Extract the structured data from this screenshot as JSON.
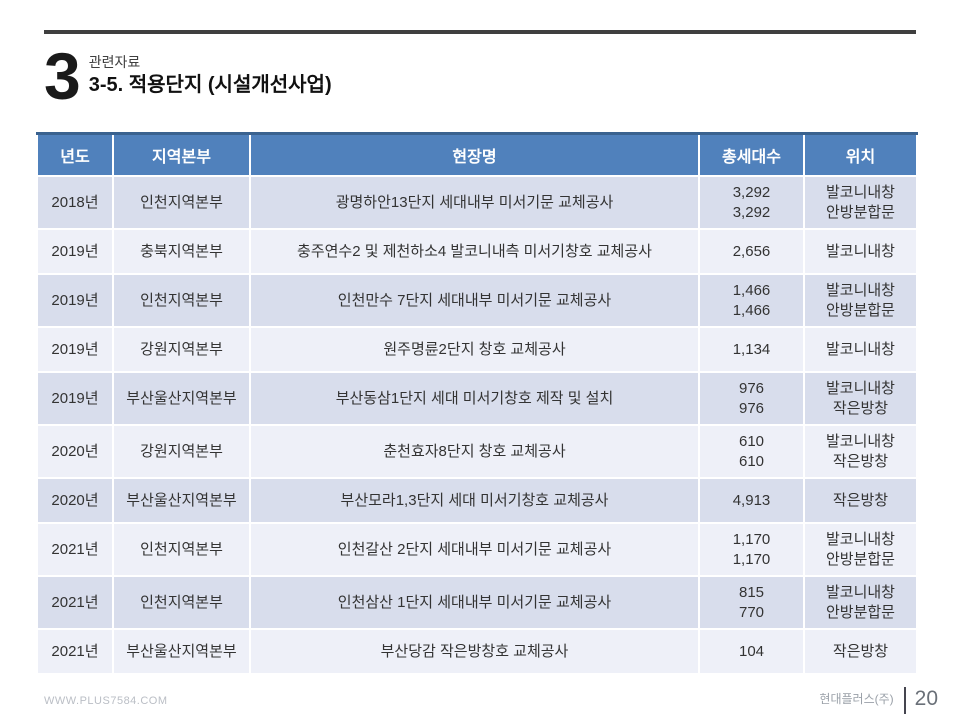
{
  "page": {
    "slide_number": "3",
    "eyebrow": "관련자료",
    "title": "3-5. 적용단지 (시설개선사업)"
  },
  "table": {
    "columns": [
      "년도",
      "지역본부",
      "현장명",
      "총세대수",
      "위치"
    ],
    "column_keys": [
      "year",
      "branch",
      "site",
      "units",
      "location"
    ],
    "rows": [
      {
        "year": "2018년",
        "branch": "인천지역본부",
        "site": "광명하안13단지 세대내부 미서기문 교체공사",
        "units": [
          "3,292",
          "3,292"
        ],
        "location": [
          "발코니내창",
          "안방분합문"
        ]
      },
      {
        "year": "2019년",
        "branch": "충북지역본부",
        "site": "충주연수2 및 제천하소4 발코니내측 미서기창호 교체공사",
        "units": [
          "2,656"
        ],
        "location": [
          "발코니내창"
        ]
      },
      {
        "year": "2019년",
        "branch": "인천지역본부",
        "site": "인천만수 7단지 세대내부 미서기문 교체공사",
        "units": [
          "1,466",
          "1,466"
        ],
        "location": [
          "발코니내창",
          "안방분합문"
        ]
      },
      {
        "year": "2019년",
        "branch": "강원지역본부",
        "site": "원주명륜2단지 창호 교체공사",
        "units": [
          "1,134"
        ],
        "location": [
          "발코니내창"
        ]
      },
      {
        "year": "2019년",
        "branch": "부산울산지역본부",
        "site": "부산동삼1단지 세대 미서기창호 제작 및 설치",
        "units": [
          "976",
          "976"
        ],
        "location": [
          "발코니내창",
          "작은방창"
        ]
      },
      {
        "year": "2020년",
        "branch": "강원지역본부",
        "site": "춘천효자8단지 창호 교체공사",
        "units": [
          "610",
          "610"
        ],
        "location": [
          "발코니내창",
          "작은방창"
        ]
      },
      {
        "year": "2020년",
        "branch": "부산울산지역본부",
        "site": "부산모라1,3단지 세대 미서기창호 교체공사",
        "units": [
          "4,913"
        ],
        "location": [
          "작은방창"
        ]
      },
      {
        "year": "2021년",
        "branch": "인천지역본부",
        "site": "인천갈산 2단지 세대내부 미서기문 교체공사",
        "units": [
          "1,170",
          "1,170"
        ],
        "location": [
          "발코니내창",
          "안방분합문"
        ]
      },
      {
        "year": "2021년",
        "branch": "인천지역본부",
        "site": "인천삼산 1단지 세대내부 미서기문 교체공사",
        "units": [
          "815",
          "770"
        ],
        "location": [
          "발코니내창",
          "안방분합문"
        ]
      },
      {
        "year": "2021년",
        "branch": "부산울산지역본부",
        "site": "부산당감 작은방창호 교체공사",
        "units": [
          "104"
        ],
        "location": [
          "작은방창"
        ]
      }
    ]
  },
  "footer": {
    "website": "WWW.PLUS7584.COM",
    "company": "현대플러스(주)",
    "page_number": "20"
  },
  "colors": {
    "header_fill": "#5081bc",
    "header_border_top": "#3a628f",
    "band_dark": "#d8ddec",
    "band_light": "#eef0f8",
    "top_rule": "#3f3f3f",
    "header_text": "#ffffff",
    "body_text": "#333333"
  }
}
